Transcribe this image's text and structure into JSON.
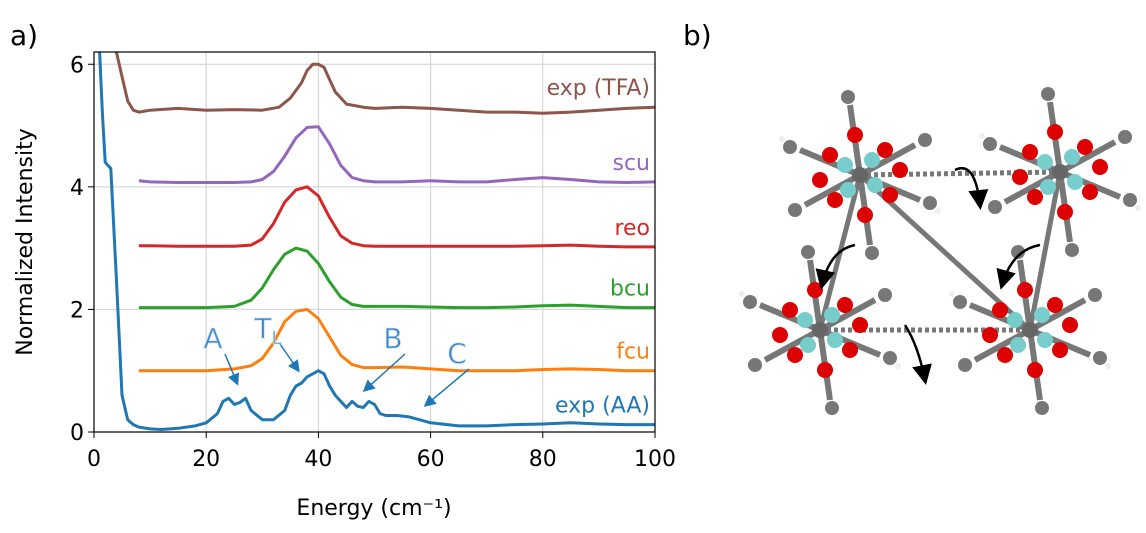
{
  "panels": [
    "a)",
    "b)"
  ],
  "chart_data": {
    "type": "line",
    "xlabel": "Energy (cm⁻¹)",
    "ylabel": "Normalized Intensity",
    "xlim": [
      0,
      100
    ],
    "xticks": [
      0,
      20,
      40,
      60,
      80,
      100
    ],
    "ylim": [
      0,
      6.2
    ],
    "yticks": [
      0,
      2,
      4,
      6
    ],
    "grid": true,
    "series": [
      {
        "name": "exp (AA)",
        "color": "#1f77b4",
        "x": [
          1,
          1.5,
          2,
          3,
          4,
          5,
          6,
          7,
          8,
          10,
          12,
          15,
          18,
          20,
          22,
          23,
          24,
          25,
          26,
          27,
          28,
          30,
          32,
          34,
          35,
          36,
          37,
          38,
          39,
          40,
          41,
          42,
          43,
          44,
          45,
          46,
          47,
          48,
          49,
          50,
          51,
          52,
          54,
          56,
          58,
          60,
          65,
          70,
          75,
          80,
          85,
          90,
          95,
          100
        ],
        "values": [
          6.2,
          5.2,
          4.4,
          4.3,
          2.5,
          0.6,
          0.2,
          0.12,
          0.08,
          0.05,
          0.04,
          0.06,
          0.1,
          0.15,
          0.3,
          0.5,
          0.55,
          0.45,
          0.48,
          0.55,
          0.35,
          0.2,
          0.2,
          0.35,
          0.6,
          0.75,
          0.8,
          0.9,
          0.95,
          1.0,
          0.95,
          0.75,
          0.6,
          0.5,
          0.4,
          0.5,
          0.42,
          0.4,
          0.5,
          0.45,
          0.3,
          0.27,
          0.27,
          0.25,
          0.2,
          0.15,
          0.1,
          0.1,
          0.12,
          0.13,
          0.15,
          0.13,
          0.12,
          0.12
        ]
      },
      {
        "name": "fcu",
        "color": "#ff7f0e",
        "x": [
          8,
          10,
          15,
          20,
          25,
          28,
          30,
          32,
          34,
          36,
          38,
          40,
          42,
          44,
          46,
          48,
          50,
          55,
          60,
          65,
          70,
          75,
          80,
          85,
          90,
          95,
          100
        ],
        "values": [
          1.0,
          1.0,
          1.0,
          1.0,
          1.03,
          1.08,
          1.2,
          1.45,
          1.8,
          1.97,
          2.0,
          1.85,
          1.55,
          1.25,
          1.1,
          1.05,
          1.05,
          1.06,
          1.03,
          1.0,
          1.0,
          1.0,
          1.02,
          1.03,
          1.02,
          1.0,
          1.0
        ]
      },
      {
        "name": "bcu",
        "color": "#2ca02c",
        "x": [
          8,
          10,
          15,
          20,
          25,
          28,
          30,
          32,
          34,
          36,
          38,
          40,
          42,
          44,
          46,
          48,
          50,
          55,
          60,
          65,
          70,
          75,
          80,
          85,
          90,
          95,
          100
        ],
        "values": [
          2.03,
          2.03,
          2.03,
          2.03,
          2.05,
          2.15,
          2.35,
          2.65,
          2.9,
          3.0,
          2.95,
          2.75,
          2.45,
          2.2,
          2.08,
          2.05,
          2.05,
          2.05,
          2.04,
          2.03,
          2.03,
          2.04,
          2.06,
          2.07,
          2.05,
          2.03,
          2.03
        ]
      },
      {
        "name": "reo",
        "color": "#d62728",
        "x": [
          8,
          10,
          15,
          20,
          25,
          28,
          30,
          32,
          34,
          36,
          38,
          40,
          42,
          44,
          46,
          48,
          50,
          55,
          60,
          65,
          70,
          75,
          80,
          85,
          90,
          95,
          100
        ],
        "values": [
          3.04,
          3.04,
          3.03,
          3.03,
          3.03,
          3.05,
          3.15,
          3.4,
          3.75,
          3.95,
          4.0,
          3.85,
          3.5,
          3.2,
          3.08,
          3.04,
          3.03,
          3.03,
          3.03,
          3.03,
          3.03,
          3.03,
          3.04,
          3.05,
          3.03,
          3.02,
          3.02
        ]
      },
      {
        "name": "scu",
        "color": "#9467bd",
        "x": [
          8,
          10,
          15,
          20,
          25,
          28,
          30,
          32,
          34,
          36,
          38,
          40,
          42,
          44,
          46,
          48,
          50,
          55,
          60,
          65,
          70,
          75,
          80,
          85,
          90,
          95,
          100
        ],
        "values": [
          4.1,
          4.08,
          4.07,
          4.07,
          4.07,
          4.08,
          4.12,
          4.25,
          4.5,
          4.8,
          4.97,
          4.98,
          4.7,
          4.35,
          4.15,
          4.1,
          4.08,
          4.08,
          4.1,
          4.08,
          4.08,
          4.12,
          4.15,
          4.12,
          4.08,
          4.07,
          4.08
        ]
      },
      {
        "name": "exp (TFA)",
        "color": "#8c564b",
        "x": [
          4,
          5,
          6,
          7,
          8,
          10,
          15,
          20,
          25,
          30,
          33,
          35,
          37,
          38,
          39,
          40,
          41,
          42,
          43,
          45,
          48,
          50,
          55,
          60,
          65,
          70,
          75,
          80,
          85,
          90,
          95,
          100
        ],
        "values": [
          6.2,
          5.8,
          5.4,
          5.25,
          5.22,
          5.25,
          5.28,
          5.25,
          5.26,
          5.25,
          5.3,
          5.45,
          5.7,
          5.9,
          6.0,
          6.0,
          5.95,
          5.75,
          5.55,
          5.35,
          5.3,
          5.28,
          5.3,
          5.28,
          5.25,
          5.22,
          5.22,
          5.2,
          5.22,
          5.25,
          5.28,
          5.3
        ]
      }
    ],
    "annotations": [
      {
        "text": "A"
      },
      {
        "text": "T",
        "subscript": "L"
      },
      {
        "text": "B"
      },
      {
        "text": "C"
      }
    ]
  }
}
